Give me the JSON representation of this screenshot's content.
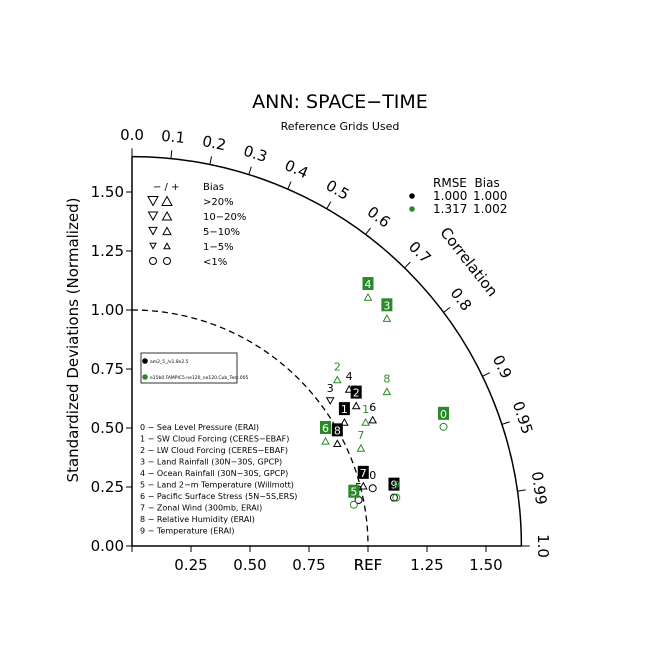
{
  "chart_data": {
    "type": "scatter",
    "subtype": "taylor-diagram",
    "title": "ANN: SPACE−TIME",
    "subtitle": "Reference Grids Used",
    "ylabel": "Standardized Deviations (Normalized)",
    "correlation_label": "Correlation",
    "reference_label": "REF",
    "xlim": [
      0,
      1.65
    ],
    "ylim": [
      0,
      1.65
    ],
    "x_ticks": [
      "0.00",
      "0.25",
      "0.50",
      "0.75",
      "REF",
      "1.25",
      "1.50"
    ],
    "x_tick_values": [
      0,
      0.25,
      0.5,
      0.75,
      1.0,
      1.25,
      1.5
    ],
    "y_ticks": [
      "0.00",
      "0.25",
      "0.50",
      "0.75",
      "1.00",
      "1.25",
      "1.50"
    ],
    "y_tick_values": [
      0,
      0.25,
      0.5,
      0.75,
      1.0,
      1.25,
      1.5
    ],
    "correlation_ticks": [
      "0.0",
      "0.1",
      "0.2",
      "0.3",
      "0.4",
      "0.5",
      "0.6",
      "0.7",
      "0.8",
      "0.9",
      "0.95",
      "0.99",
      "1.0"
    ],
    "correlation_tick_values": [
      0,
      0.1,
      0.2,
      0.3,
      0.4,
      0.5,
      0.6,
      0.7,
      0.8,
      0.9,
      0.95,
      0.99,
      1.0
    ],
    "reference_arc_radius": 1.0,
    "outer_arc_radius": 1.65,
    "bias_legend": {
      "header_symbols": "− / +",
      "header_label": "Bias",
      "rows": [
        {
          "label": ">20%"
        },
        {
          "label": "10−20%"
        },
        {
          "label": "5−10%"
        },
        {
          "label": "1−5%"
        },
        {
          "label": "<1%"
        }
      ]
    },
    "rmse_legend": {
      "header": "RMSE  Bias",
      "rows": [
        {
          "rmse": "1.000",
          "bias": "1.000",
          "color": "#000000"
        },
        {
          "rmse": "1.317",
          "bias": "1.002",
          "color": "#2a8a2a"
        }
      ]
    },
    "case_legend": {
      "entries": [
        {
          "label": "am2_5_∕v1.8x2.5",
          "color": "#000000"
        },
        {
          "label": "e15b0.FAMPIC5.ne120_ne120.Cub_Test.005",
          "color": "#2a8a2a"
        }
      ]
    },
    "variables": [
      "0 − Sea Level Pressure (ERAI)",
      "1 − SW Cloud Forcing (CERES−EBAF)",
      "2 − LW Cloud Forcing (CERES−EBAF)",
      "3 − Land Rainfall (30N−30S, GPCP)",
      "4 − Ocean Rainfall (30N−30S, GPCP)",
      "5 − Land 2−m Temperature (Willmott)",
      "6 − Pacific Surface Stress (5N−5S,ERS)",
      "7 − Zonal Wind (300mb, ERAI)",
      "8 − Relative Humidity (ERAI)",
      "9 − Temperature (ERAI)"
    ],
    "series": [
      {
        "name": "am2_5_∕v1.8x2.5",
        "color": "#000000",
        "points": [
          {
            "id": "0",
            "x": 1.02,
            "y": 0.3,
            "style": "plain",
            "bias": "circle"
          },
          {
            "id": "1",
            "x": 0.9,
            "y": 0.58,
            "style": "box",
            "bias": "up"
          },
          {
            "id": "2",
            "x": 0.95,
            "y": 0.65,
            "style": "box",
            "bias": "up"
          },
          {
            "id": "3",
            "x": 0.84,
            "y": 0.67,
            "style": "plain",
            "bias": "down"
          },
          {
            "id": "4",
            "x": 0.92,
            "y": 0.72,
            "style": "plain",
            "bias": "up"
          },
          {
            "id": "5",
            "x": 0.96,
            "y": 0.25,
            "style": "plain",
            "bias": "circle"
          },
          {
            "id": "6",
            "x": 1.02,
            "y": 0.59,
            "style": "plain",
            "bias": "up"
          },
          {
            "id": "7",
            "x": 0.98,
            "y": 0.31,
            "style": "box",
            "bias": "up"
          },
          {
            "id": "8",
            "x": 0.87,
            "y": 0.49,
            "style": "box",
            "bias": "up"
          },
          {
            "id": "9",
            "x": 1.11,
            "y": 0.26,
            "style": "box",
            "bias": "circle"
          }
        ]
      },
      {
        "name": "e15b0.FAMPIC5.ne120_ne120.Cub_Test.005",
        "color": "#2a8a2a",
        "points": [
          {
            "id": "0",
            "x": 1.32,
            "y": 0.56,
            "style": "box",
            "bias": "circle"
          },
          {
            "id": "1",
            "x": 0.99,
            "y": 0.58,
            "style": "plain",
            "bias": "up"
          },
          {
            "id": "2",
            "x": 0.87,
            "y": 0.76,
            "style": "plain",
            "bias": "up"
          },
          {
            "id": "3",
            "x": 1.08,
            "y": 1.02,
            "style": "box",
            "bias": "up"
          },
          {
            "id": "4",
            "x": 1.0,
            "y": 1.11,
            "style": "box",
            "bias": "up"
          },
          {
            "id": "5",
            "x": 0.94,
            "y": 0.23,
            "style": "box",
            "bias": "circle"
          },
          {
            "id": "6",
            "x": 0.82,
            "y": 0.5,
            "style": "box",
            "bias": "up"
          },
          {
            "id": "7",
            "x": 0.97,
            "y": 0.47,
            "style": "plain",
            "bias": "up"
          },
          {
            "id": "8",
            "x": 1.08,
            "y": 0.71,
            "style": "plain",
            "bias": "up"
          },
          {
            "id": "9",
            "x": 1.12,
            "y": 0.26,
            "style": "plain",
            "bias": "circle"
          }
        ]
      }
    ],
    "grid": false
  }
}
